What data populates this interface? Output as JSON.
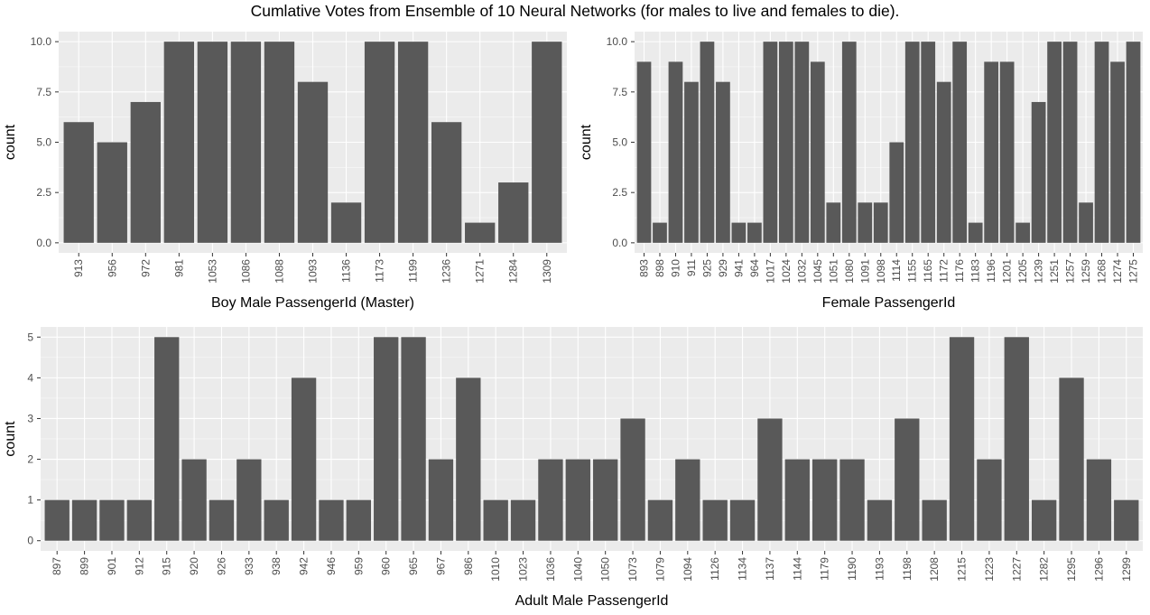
{
  "title": "Cumlative Votes from Ensemble of 10 Neural Networks (for males to live and females to die).",
  "chart_data": [
    {
      "type": "bar",
      "xlabel": "Boy Male PassengerId (Master)",
      "ylabel": "count",
      "ylim": [
        0,
        10
      ],
      "yticks": [
        0,
        2.5,
        5,
        7.5,
        10
      ],
      "ytick_labels": [
        "0.0",
        "2.5",
        "5.0",
        "7.5",
        "10.0"
      ],
      "grid": true,
      "categories": [
        "913",
        "956",
        "972",
        "981",
        "1053",
        "1086",
        "1088",
        "1093",
        "1136",
        "1173",
        "1199",
        "1236",
        "1271",
        "1284",
        "1309"
      ],
      "values": [
        6,
        5,
        7,
        10,
        10,
        10,
        10,
        8,
        2,
        10,
        10,
        6,
        1,
        3,
        10
      ]
    },
    {
      "type": "bar",
      "xlabel": "Female PassengerId",
      "ylabel": "count",
      "ylim": [
        0,
        10
      ],
      "yticks": [
        0,
        2.5,
        5,
        7.5,
        10
      ],
      "ytick_labels": [
        "0.0",
        "2.5",
        "5.0",
        "7.5",
        "10.0"
      ],
      "grid": true,
      "categories": [
        "893",
        "898",
        "910",
        "911",
        "925",
        "929",
        "941",
        "964",
        "1017",
        "1024",
        "1032",
        "1045",
        "1051",
        "1080",
        "1091",
        "1098",
        "1114",
        "1155",
        "1165",
        "1172",
        "1176",
        "1183",
        "1196",
        "1201",
        "1205",
        "1239",
        "1251",
        "1257",
        "1259",
        "1268",
        "1274",
        "1275"
      ],
      "values": [
        9,
        1,
        9,
        8,
        10,
        8,
        1,
        1,
        10,
        10,
        10,
        9,
        2,
        10,
        2,
        2,
        5,
        10,
        10,
        8,
        10,
        1,
        9,
        9,
        1,
        7,
        10,
        10,
        2,
        10,
        9,
        10
      ]
    },
    {
      "type": "bar",
      "xlabel": "Adult Male PassengerId",
      "ylabel": "count",
      "ylim": [
        0,
        5
      ],
      "yticks": [
        0,
        1,
        2,
        3,
        4,
        5
      ],
      "ytick_labels": [
        "0",
        "1",
        "2",
        "3",
        "4",
        "5"
      ],
      "grid": true,
      "categories": [
        "897",
        "899",
        "901",
        "912",
        "915",
        "920",
        "926",
        "933",
        "938",
        "942",
        "946",
        "959",
        "960",
        "965",
        "967",
        "986",
        "1010",
        "1023",
        "1036",
        "1040",
        "1050",
        "1073",
        "1079",
        "1094",
        "1126",
        "1134",
        "1137",
        "1144",
        "1179",
        "1190",
        "1193",
        "1198",
        "1208",
        "1215",
        "1223",
        "1227",
        "1282",
        "1295",
        "1296",
        "1299"
      ],
      "values": [
        1,
        1,
        1,
        1,
        5,
        2,
        1,
        2,
        1,
        4,
        1,
        1,
        5,
        5,
        2,
        4,
        1,
        1,
        2,
        2,
        2,
        3,
        1,
        2,
        1,
        1,
        3,
        2,
        2,
        2,
        1,
        3,
        1,
        5,
        2,
        5,
        1,
        4,
        2,
        1
      ]
    }
  ]
}
